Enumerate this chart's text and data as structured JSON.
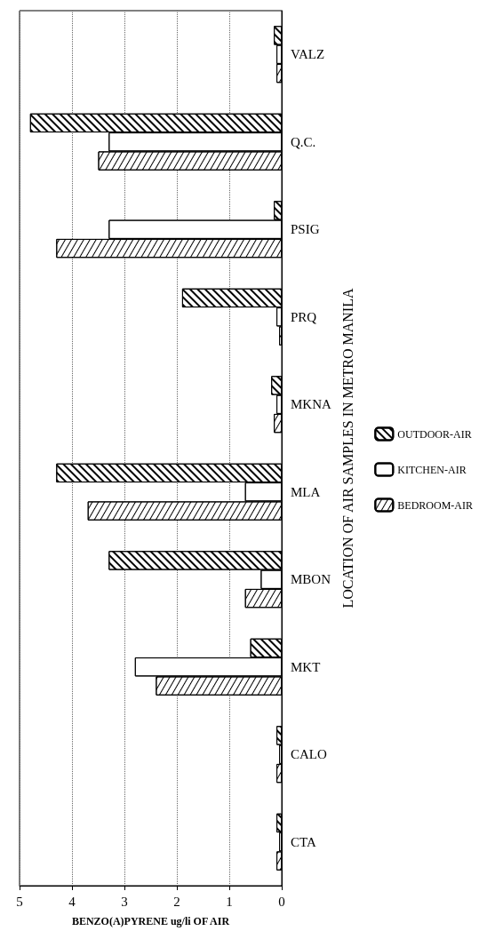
{
  "chart_data": {
    "type": "bar",
    "orientation": "horizontal",
    "xlabel": "BENZO(A)PYRENE ug/li OF AIR",
    "ylabel": "LOCATION OF AIR SAMPLES IN METRO MANILA",
    "categories": [
      "VALZ",
      "Q.C.",
      "PSIG",
      "PRQ",
      "MKNA",
      "MLA",
      "MBON",
      "MKT",
      "CALO",
      "CTA"
    ],
    "series": [
      {
        "name": "OUTDOOR-AIR",
        "color": "#ffffff",
        "values": [
          0.15,
          4.8,
          0.15,
          1.9,
          0.2,
          4.3,
          3.3,
          0.6,
          0.1,
          0.1
        ]
      },
      {
        "name": "KITCHEN-AIR",
        "color": "#ffffff",
        "values": [
          0.1,
          3.3,
          3.3,
          0.1,
          0.1,
          0.7,
          0.4,
          2.8,
          0.05,
          0.05
        ]
      },
      {
        "name": "BEDROOM-AIR",
        "color": "#ffffff",
        "values": [
          0.1,
          3.5,
          4.3,
          0.05,
          0.15,
          3.7,
          0.7,
          2.4,
          0.1,
          0.1
        ]
      }
    ],
    "xlim": [
      5,
      0
    ],
    "xticks": [
      5,
      4,
      3,
      2,
      1,
      0
    ],
    "grid": "x",
    "legend": "right"
  }
}
